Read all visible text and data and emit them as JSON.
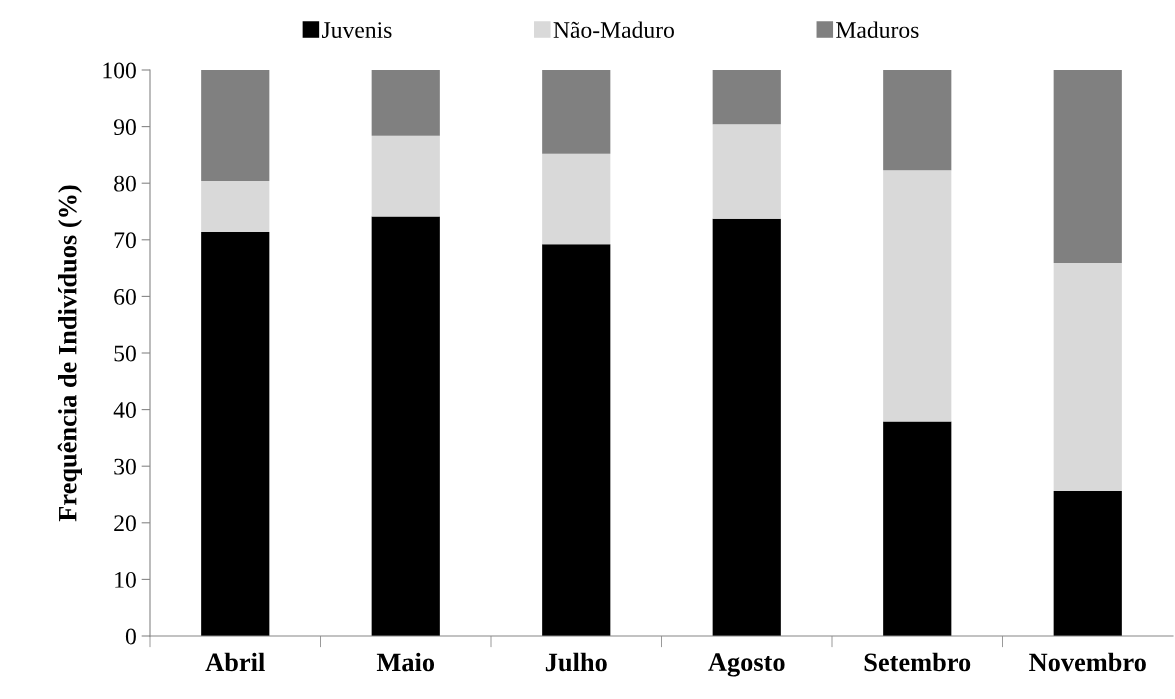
{
  "chart_data": {
    "type": "bar",
    "stacked": true,
    "ylabel": "Frequência de Indivíduos (%)",
    "categories": [
      "Abril",
      "Maio",
      "Julho",
      "Agosto",
      "Setembro",
      "Novembro"
    ],
    "series": [
      {
        "name": "Juvenis",
        "color": "#000000",
        "values": [
          71.4,
          74.1,
          69.2,
          73.7,
          37.9,
          25.6
        ]
      },
      {
        "name": "Não-Maduro",
        "color": "#d9d9d9",
        "values": [
          9.0,
          14.3,
          16.0,
          16.7,
          44.4,
          40.3
        ]
      },
      {
        "name": "Maduros",
        "color": "#808080",
        "values": [
          19.6,
          11.6,
          14.8,
          9.6,
          17.7,
          34.1
        ]
      }
    ],
    "ylim": [
      0,
      100
    ],
    "yticks": [
      0,
      10,
      20,
      30,
      40,
      50,
      60,
      70,
      80,
      90,
      100
    ],
    "grid": false,
    "legend": "top"
  }
}
